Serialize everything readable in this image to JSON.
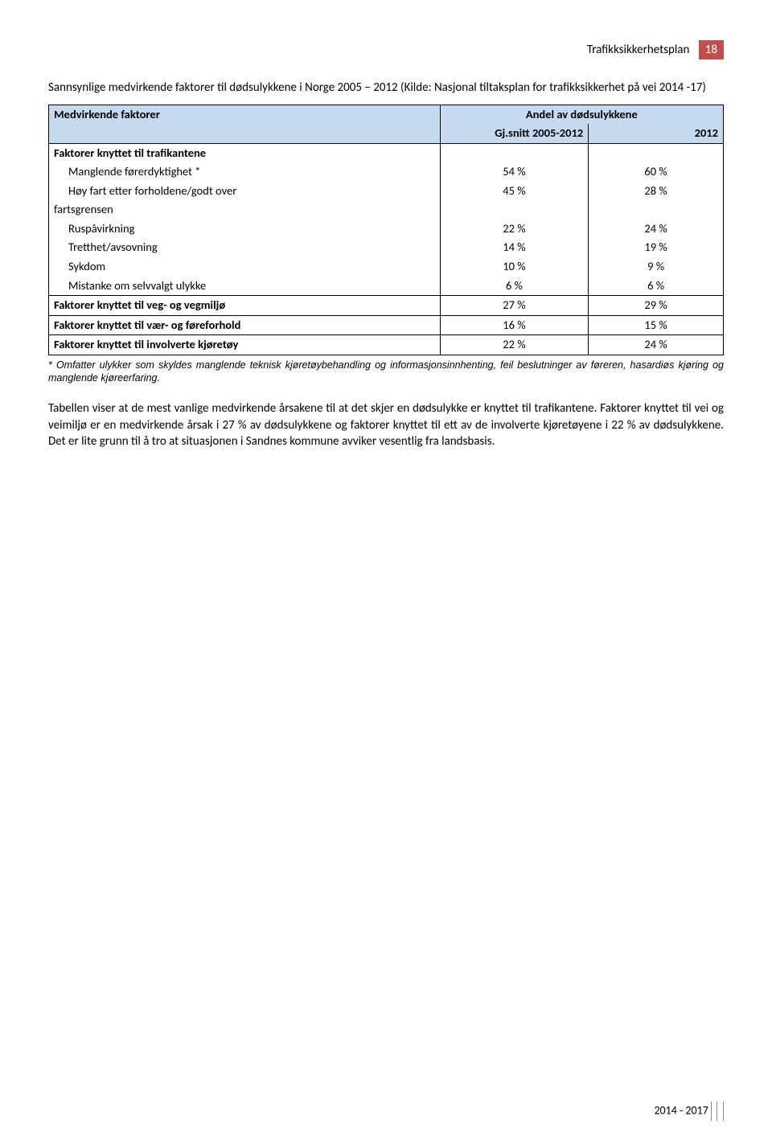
{
  "header": {
    "title": "Trafikksikkerhetsplan",
    "page_num": "18"
  },
  "intro": "Sannsynlige medvirkende faktorer til dødsulykkene i Norge 2005 – 2012 (Kilde: Nasjonal tiltaksplan for trafikksikkerhet på vei 2014 -17)",
  "table": {
    "header": {
      "col1": "Medvirkende faktorer",
      "col_span": "Andel av dødsulykkene",
      "sub_col2": "Gj.snitt 2005-2012",
      "sub_col3": "2012"
    },
    "rows": [
      {
        "label": "Faktorer knyttet til trafikantene",
        "bold": true,
        "indent": false,
        "v1": "",
        "v2": ""
      },
      {
        "label": "Manglende førerdyktighet *",
        "bold": false,
        "indent": true,
        "v1": "54 %",
        "v2": "60 %"
      },
      {
        "label": "Høy fart etter forholdene/godt over",
        "bold": false,
        "indent": true,
        "v1": "45 %",
        "v2": "28 %"
      },
      {
        "label": "fartsgrensen",
        "bold": false,
        "indent": false,
        "v1": "",
        "v2": ""
      },
      {
        "label": "Ruspåvirkning",
        "bold": false,
        "indent": true,
        "v1": "22 %",
        "v2": "24 %"
      },
      {
        "label": "Tretthet/avsovning",
        "bold": false,
        "indent": true,
        "v1": "14 %",
        "v2": "19 %"
      },
      {
        "label": "Sykdom",
        "bold": false,
        "indent": true,
        "v1": "10 %",
        "v2": "9 %"
      },
      {
        "label": "Mistanke om selvvalgt ulykke",
        "bold": false,
        "indent": true,
        "v1": "6 %",
        "v2": "6 %"
      },
      {
        "label": "Faktorer knyttet til veg- og vegmiljø",
        "bold": true,
        "indent": false,
        "v1": "27 %",
        "v2": "29 %",
        "border": true
      },
      {
        "label": "Faktorer knyttet til vær- og føreforhold",
        "bold": true,
        "indent": false,
        "v1": "16 %",
        "v2": "15 %",
        "border": true
      },
      {
        "label": "Faktorer knyttet til involverte kjøretøy",
        "bold": true,
        "indent": false,
        "v1": "22 %",
        "v2": "24 %",
        "border": true,
        "botborder": true
      }
    ]
  },
  "footnote": "* Omfatter ulykker som skyldes manglende teknisk kjøretøybehandling og informasjonsinnhenting, feil beslutninger av føreren, hasardiøs kjøring og manglende kjøreerfaring.",
  "para1": "Tabellen viser at de mest vanlige medvirkende årsakene til at det skjer en dødsulykke er knyttet til trafikantene. Faktorer knyttet til vei og veimiljø er en medvirkende årsak i 27 % av dødsulykkene og faktorer knyttet til ett av de involverte kjøretøyene i 22 % av dødsulykkene. Det er lite grunn til å tro at situasjonen i Sandnes kommune avviker vesentlig fra landsbasis.",
  "footer": "2014 - 2017"
}
